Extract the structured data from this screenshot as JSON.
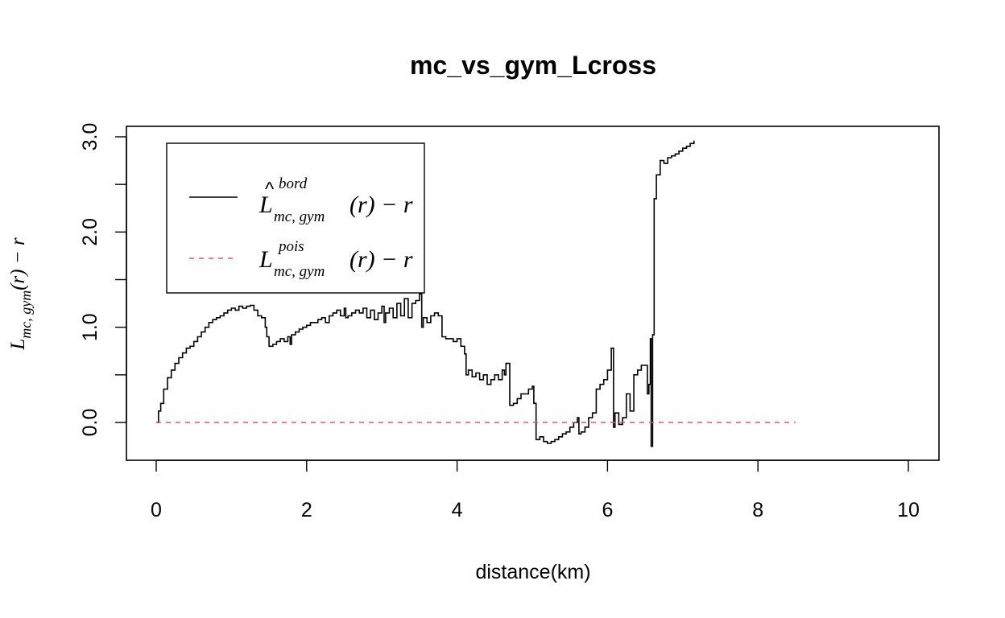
{
  "chart_data": {
    "type": "line",
    "title": "mc_vs_gym_Lcross",
    "xlabel": "distance(km)",
    "ylabel": {
      "main": "L",
      "sub": "mc, gym",
      "rest": "(r) − r"
    },
    "xlim": [
      0,
      10
    ],
    "ylim": [
      -0.35,
      3.15
    ],
    "xticks": [
      0,
      2,
      4,
      6,
      8,
      10
    ],
    "xtick_labels": [
      "0",
      "2",
      "4",
      "6",
      "8",
      "10"
    ],
    "yticks": [
      0,
      1,
      2,
      3
    ],
    "ytick_labels": [
      "0.0",
      "1.0",
      "2.0",
      "3.0"
    ],
    "grid": false,
    "legend_position": "top-left",
    "legend": [
      {
        "sym": "L",
        "hat": "^",
        "sup": "bord",
        "sub": "mc, gym",
        "rest": "(r) − r",
        "color": "#000000",
        "dash": "solid"
      },
      {
        "sym": "L",
        "hat": "",
        "sup": "pois",
        "sub": "mc, gym",
        "rest": "(r) − r",
        "color": "#DF536B",
        "dash": "dashed"
      }
    ],
    "series": [
      {
        "color": "#000000",
        "dash": "solid",
        "x": [
          0,
          0.03,
          0.06,
          0.1,
          0.15,
          0.2,
          0.25,
          0.3,
          0.35,
          0.4,
          0.45,
          0.5,
          0.55,
          0.6,
          0.65,
          0.7,
          0.75,
          0.8,
          0.85,
          0.9,
          0.95,
          1.0,
          1.05,
          1.1,
          1.15,
          1.2,
          1.25,
          1.3,
          1.35,
          1.4,
          1.45,
          1.47,
          1.5,
          1.55,
          1.6,
          1.65,
          1.7,
          1.75,
          1.78,
          1.8,
          1.85,
          1.9,
          1.95,
          2.0,
          2.05,
          2.1,
          2.15,
          2.2,
          2.25,
          2.3,
          2.35,
          2.4,
          2.45,
          2.5,
          2.52,
          2.55,
          2.6,
          2.65,
          2.7,
          2.75,
          2.8,
          2.85,
          2.9,
          2.95,
          3.0,
          3.03,
          3.05,
          3.1,
          3.15,
          3.2,
          3.25,
          3.3,
          3.35,
          3.4,
          3.45,
          3.5,
          3.53,
          3.55,
          3.6,
          3.65,
          3.7,
          3.75,
          3.8,
          3.85,
          3.9,
          3.95,
          4.0,
          4.05,
          4.1,
          4.12,
          4.15,
          4.2,
          4.25,
          4.3,
          4.35,
          4.4,
          4.45,
          4.5,
          4.55,
          4.6,
          4.63,
          4.65,
          4.7,
          4.75,
          4.8,
          4.85,
          4.9,
          4.95,
          5.0,
          5.02,
          5.05,
          5.1,
          5.15,
          5.2,
          5.25,
          5.3,
          5.35,
          5.4,
          5.45,
          5.5,
          5.55,
          5.6,
          5.62,
          5.65,
          5.7,
          5.75,
          5.8,
          5.85,
          5.9,
          5.95,
          6.0,
          6.05,
          6.08,
          6.1,
          6.15,
          6.2,
          6.25,
          6.3,
          6.35,
          6.4,
          6.45,
          6.5,
          6.53,
          6.55,
          6.57,
          6.58,
          6.6,
          6.62,
          6.65,
          6.7,
          6.75,
          6.8,
          6.85,
          6.9,
          6.95,
          7.0,
          7.05,
          7.1,
          7.15
        ],
        "y": [
          0,
          0.12,
          0.2,
          0.35,
          0.47,
          0.55,
          0.62,
          0.68,
          0.73,
          0.78,
          0.8,
          0.85,
          0.9,
          0.95,
          1.0,
          1.05,
          1.08,
          1.1,
          1.12,
          1.15,
          1.18,
          1.2,
          1.18,
          1.22,
          1.2,
          1.22,
          1.23,
          1.18,
          1.12,
          1.1,
          1.0,
          0.9,
          0.8,
          0.82,
          0.85,
          0.88,
          0.85,
          0.9,
          0.82,
          0.92,
          0.95,
          0.98,
          1.0,
          1.02,
          1.05,
          1.05,
          1.08,
          1.1,
          1.05,
          1.12,
          1.15,
          1.18,
          1.12,
          1.2,
          1.1,
          1.12,
          1.15,
          1.18,
          1.15,
          1.2,
          1.1,
          1.18,
          1.08,
          1.15,
          1.22,
          1.05,
          1.15,
          1.2,
          1.1,
          1.25,
          1.12,
          1.3,
          1.1,
          1.25,
          1.28,
          1.35,
          1.0,
          1.1,
          1.05,
          1.12,
          1.15,
          1.12,
          0.9,
          0.88,
          0.88,
          0.85,
          0.88,
          0.8,
          0.72,
          0.5,
          0.55,
          0.48,
          0.52,
          0.45,
          0.5,
          0.4,
          0.45,
          0.5,
          0.45,
          0.55,
          0.5,
          0.62,
          0.18,
          0.2,
          0.25,
          0.3,
          0.3,
          0.35,
          0.38,
          0.2,
          -0.18,
          -0.15,
          -0.2,
          -0.22,
          -0.2,
          -0.18,
          -0.15,
          -0.12,
          -0.1,
          -0.05,
          0.0,
          0.05,
          -0.12,
          -0.1,
          -0.05,
          0.05,
          0.1,
          0.35,
          0.4,
          0.45,
          0.55,
          0.78,
          -0.05,
          0.1,
          -0.02,
          0.05,
          0.3,
          0.12,
          0.5,
          0.55,
          0.6,
          0.6,
          0.3,
          0.4,
          0.88,
          -0.25,
          0.92,
          2.35,
          2.6,
          2.75,
          2.72,
          2.78,
          2.8,
          2.82,
          2.85,
          2.88,
          2.9,
          2.93,
          2.96
        ]
      },
      {
        "color": "#DF536B",
        "dash": "dashed",
        "x": [
          0,
          8.5
        ],
        "y": [
          0,
          0
        ]
      }
    ]
  }
}
